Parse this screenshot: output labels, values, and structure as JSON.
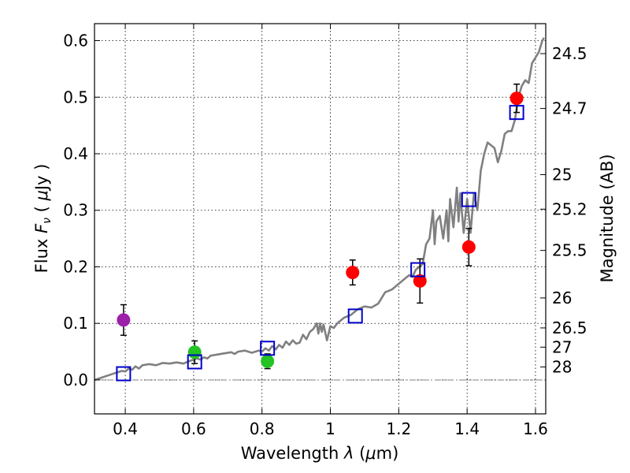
{
  "chart_data": {
    "type": "scatter",
    "title": "",
    "xlabel": "Wavelength  λ (μm)",
    "ylabel": "Flux  Fν  ( μJy )",
    "ylabel_right": "Magnitude (AB)",
    "xlim": [
      0.31,
      1.63
    ],
    "ylim": [
      -0.06,
      0.63
    ],
    "grid": true,
    "x_ticks": [
      0.4,
      0.6,
      0.8,
      1.0,
      1.2,
      1.4,
      1.6
    ],
    "x_tick_labels": [
      "0.4",
      "0.6",
      "0.8",
      "1",
      "1.2",
      "1.4",
      "1.6"
    ],
    "y_ticks": [
      0.0,
      0.1,
      0.2,
      0.3,
      0.4,
      0.5,
      0.6
    ],
    "y_tick_labels": [
      "0.0",
      "0.1",
      "0.2",
      "0.3",
      "0.4",
      "0.5",
      "0.6"
    ],
    "right_axis_ticks": [
      {
        "flux": 0.577,
        "label": "24.5"
      },
      {
        "flux": 0.48,
        "label": "24.7"
      },
      {
        "flux": 0.363,
        "label": "25"
      },
      {
        "flux": 0.302,
        "label": "25.2"
      },
      {
        "flux": 0.229,
        "label": "25.5"
      },
      {
        "flux": 0.145,
        "label": "26"
      },
      {
        "flux": 0.092,
        "label": "26.5"
      },
      {
        "flux": 0.058,
        "label": "27"
      },
      {
        "flux": 0.023,
        "label": "28"
      }
    ],
    "zero_line": {
      "y": 0,
      "style": "dash-dot",
      "color": "#808080"
    },
    "series": [
      {
        "kind": "line",
        "color": "#808080",
        "points": [
          [
            0.31,
            0.0
          ],
          [
            0.33,
            0.004
          ],
          [
            0.35,
            0.008
          ],
          [
            0.37,
            0.012
          ],
          [
            0.39,
            0.016
          ],
          [
            0.4,
            0.015
          ],
          [
            0.41,
            0.02
          ],
          [
            0.42,
            0.018
          ],
          [
            0.43,
            0.024
          ],
          [
            0.44,
            0.02
          ],
          [
            0.45,
            0.026
          ],
          [
            0.47,
            0.028
          ],
          [
            0.49,
            0.026
          ],
          [
            0.51,
            0.03
          ],
          [
            0.53,
            0.029
          ],
          [
            0.55,
            0.031
          ],
          [
            0.57,
            0.029
          ],
          [
            0.59,
            0.034
          ],
          [
            0.61,
            0.038
          ],
          [
            0.62,
            0.036
          ],
          [
            0.63,
            0.04
          ],
          [
            0.64,
            0.038
          ],
          [
            0.65,
            0.043
          ],
          [
            0.67,
            0.045
          ],
          [
            0.69,
            0.047
          ],
          [
            0.71,
            0.049
          ],
          [
            0.72,
            0.046
          ],
          [
            0.73,
            0.05
          ],
          [
            0.75,
            0.052
          ],
          [
            0.77,
            0.048
          ],
          [
            0.79,
            0.052
          ],
          [
            0.8,
            0.05
          ],
          [
            0.81,
            0.056
          ],
          [
            0.82,
            0.052
          ],
          [
            0.83,
            0.06
          ],
          [
            0.84,
            0.054
          ],
          [
            0.85,
            0.062
          ],
          [
            0.86,
            0.057
          ],
          [
            0.87,
            0.068
          ],
          [
            0.88,
            0.062
          ],
          [
            0.89,
            0.07
          ],
          [
            0.9,
            0.064
          ],
          [
            0.91,
            0.066
          ],
          [
            0.92,
            0.08
          ],
          [
            0.93,
            0.072
          ],
          [
            0.94,
            0.085
          ],
          [
            0.95,
            0.09
          ],
          [
            0.96,
            0.1
          ],
          [
            0.965,
            0.082
          ],
          [
            0.97,
            0.1
          ],
          [
            0.975,
            0.085
          ],
          [
            0.98,
            0.098
          ],
          [
            0.99,
            0.07
          ],
          [
            1.0,
            0.095
          ],
          [
            1.01,
            0.092
          ],
          [
            1.02,
            0.1
          ],
          [
            1.03,
            0.105
          ],
          [
            1.04,
            0.11
          ],
          [
            1.06,
            0.115
          ],
          [
            1.08,
            0.125
          ],
          [
            1.1,
            0.13
          ],
          [
            1.12,
            0.128
          ],
          [
            1.14,
            0.135
          ],
          [
            1.16,
            0.155
          ],
          [
            1.18,
            0.16
          ],
          [
            1.2,
            0.17
          ],
          [
            1.21,
            0.175
          ],
          [
            1.22,
            0.18
          ],
          [
            1.23,
            0.185
          ],
          [
            1.24,
            0.182
          ],
          [
            1.25,
            0.195
          ],
          [
            1.26,
            0.2
          ],
          [
            1.27,
            0.205
          ],
          [
            1.28,
            0.24
          ],
          [
            1.29,
            0.25
          ],
          [
            1.3,
            0.3
          ],
          [
            1.305,
            0.24
          ],
          [
            1.31,
            0.28
          ],
          [
            1.32,
            0.29
          ],
          [
            1.33,
            0.25
          ],
          [
            1.34,
            0.3
          ],
          [
            1.345,
            0.245
          ],
          [
            1.35,
            0.32
          ],
          [
            1.36,
            0.27
          ],
          [
            1.37,
            0.34
          ],
          [
            1.375,
            0.28
          ],
          [
            1.38,
            0.33
          ],
          [
            1.39,
            0.26
          ],
          [
            1.4,
            0.32
          ],
          [
            1.41,
            0.26
          ],
          [
            1.42,
            0.33
          ],
          [
            1.43,
            0.3
          ],
          [
            1.44,
            0.37
          ],
          [
            1.45,
            0.4
          ],
          [
            1.46,
            0.42
          ],
          [
            1.47,
            0.415
          ],
          [
            1.48,
            0.41
          ],
          [
            1.49,
            0.385
          ],
          [
            1.5,
            0.405
          ],
          [
            1.51,
            0.435
          ],
          [
            1.52,
            0.44
          ],
          [
            1.53,
            0.44
          ],
          [
            1.54,
            0.46
          ],
          [
            1.55,
            0.5
          ],
          [
            1.56,
            0.52
          ],
          [
            1.57,
            0.53
          ],
          [
            1.58,
            0.525
          ],
          [
            1.59,
            0.56
          ],
          [
            1.6,
            0.57
          ],
          [
            1.61,
            0.58
          ],
          [
            1.62,
            0.6
          ],
          [
            1.625,
            0.605
          ]
        ]
      },
      {
        "kind": "scatter",
        "marker": "circle",
        "color": "#9b1fa8",
        "points": [
          {
            "x": 0.395,
            "y": 0.106,
            "err": 0.027
          }
        ]
      },
      {
        "kind": "scatter",
        "marker": "circle",
        "color": "#22c322",
        "points": [
          {
            "x": 0.603,
            "y": 0.049,
            "err": 0.02
          },
          {
            "x": 0.816,
            "y": 0.033,
            "err": 0.013
          }
        ]
      },
      {
        "kind": "scatter",
        "marker": "circle",
        "color": "#ff0000",
        "points": [
          {
            "x": 1.065,
            "y": 0.19,
            "err": 0.022
          },
          {
            "x": 1.262,
            "y": 0.175,
            "err": 0.039
          },
          {
            "x": 1.405,
            "y": 0.235,
            "err": 0.033
          },
          {
            "x": 1.545,
            "y": 0.498,
            "err": 0.025
          }
        ]
      },
      {
        "kind": "scatter",
        "marker": "square-open",
        "color": "#0000cc",
        "points": [
          {
            "x": 0.395,
            "y": 0.011
          },
          {
            "x": 0.603,
            "y": 0.032
          },
          {
            "x": 0.816,
            "y": 0.056
          },
          {
            "x": 1.073,
            "y": 0.113
          },
          {
            "x": 1.256,
            "y": 0.195
          },
          {
            "x": 1.405,
            "y": 0.319
          },
          {
            "x": 1.545,
            "y": 0.473
          }
        ]
      }
    ]
  }
}
